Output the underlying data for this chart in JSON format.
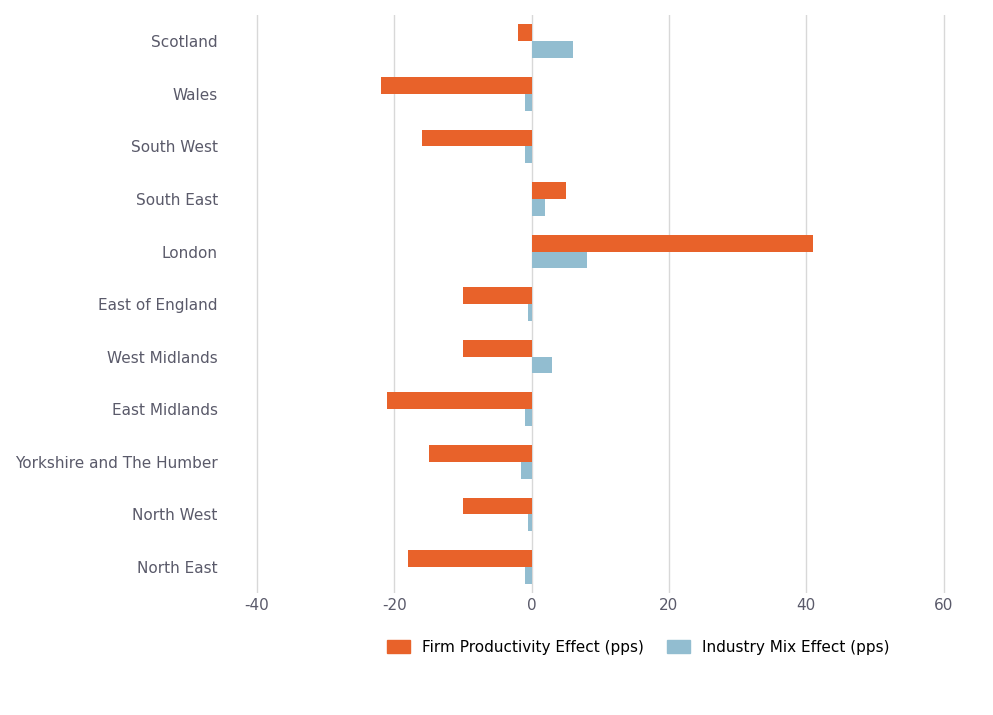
{
  "regions": [
    "Scotland",
    "Wales",
    "South West",
    "South East",
    "London",
    "East of England",
    "West Midlands",
    "East Midlands",
    "Yorkshire and The Humber",
    "North West",
    "North East"
  ],
  "firm_productivity": [
    -2,
    -22,
    -16,
    5,
    41,
    -10,
    -10,
    -21,
    -15,
    -10,
    -18
  ],
  "industry_mix": [
    6,
    -1,
    -1,
    2,
    8,
    -0.5,
    3,
    -1,
    -1.5,
    -0.5,
    -1
  ],
  "firm_color": "#E8622A",
  "industry_color": "#92BDD0",
  "xlim": [
    -45,
    65
  ],
  "xticks": [
    -40,
    -20,
    0,
    20,
    40,
    60
  ],
  "bar_height": 0.32,
  "legend_firm": "Firm Productivity Effect (pps)",
  "legend_industry": "Industry Mix Effect (pps)",
  "background_color": "#FFFFFF",
  "grid_color": "#D8D8D8",
  "text_color": "#5A5A6A",
  "tick_label_size": 11,
  "legend_fontsize": 11
}
